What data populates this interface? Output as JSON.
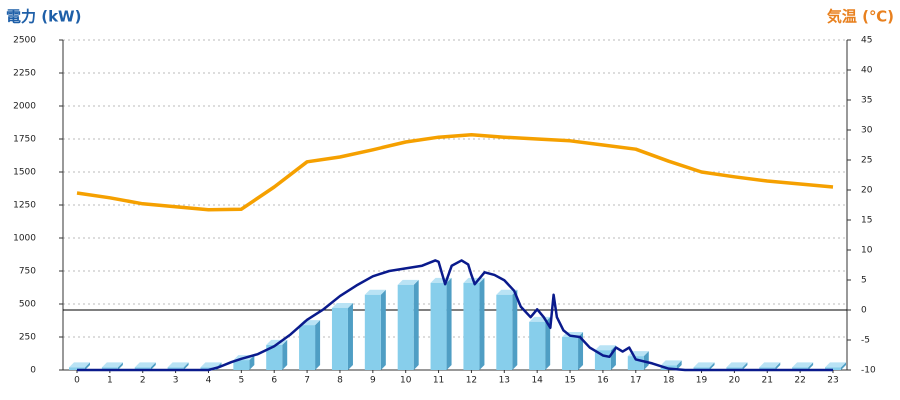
{
  "chart_data": {
    "type": "bar",
    "y_title": "電力 (kW)",
    "y2_title": "気温 (℃)",
    "categories": [
      "0",
      "1",
      "2",
      "3",
      "4",
      "5",
      "6",
      "7",
      "8",
      "9",
      "10",
      "11",
      "12",
      "13",
      "14",
      "15",
      "16",
      "17",
      "18",
      "19",
      "20",
      "21",
      "22",
      "23"
    ],
    "ylim": [
      0,
      2500
    ],
    "yticks": [
      0,
      250,
      500,
      750,
      1000,
      1250,
      1500,
      1750,
      2000,
      2250,
      2500
    ],
    "y2lim": [
      -10,
      45
    ],
    "y2ticks": [
      -10,
      -5,
      0,
      5,
      10,
      15,
      20,
      25,
      30,
      35,
      40,
      45
    ],
    "grid": true,
    "bars": {
      "color": "#87ceeb",
      "values": [
        20,
        20,
        20,
        20,
        20,
        75,
        190,
        340,
        470,
        570,
        645,
        660,
        660,
        570,
        365,
        250,
        150,
        105,
        35,
        20,
        20,
        20,
        20,
        20
      ]
    },
    "temperature": {
      "color": "#f5a000",
      "axis": "y2",
      "values": [
        19.5,
        18.7,
        17.7,
        17.2,
        16.7,
        16.8,
        20.5,
        24.7,
        25.5,
        26.7,
        28,
        28.8,
        29.2,
        28.8,
        28.5,
        28.2,
        27.5,
        26.8,
        24.8,
        23,
        22.2,
        21.5,
        21,
        20.5
      ]
    },
    "power": {
      "color": "#0a1a8c",
      "x": [
        0,
        1,
        2,
        3,
        4,
        4.3,
        4.7,
        5,
        5.5,
        6,
        6.5,
        7,
        7.5,
        8,
        8.5,
        9,
        9.5,
        10,
        10.5,
        10.9,
        11,
        11.2,
        11.4,
        11.7,
        11.9,
        12,
        12.1,
        12.4,
        12.7,
        13,
        13.3,
        13.5,
        13.8,
        14,
        14.2,
        14.4,
        14.5,
        14.6,
        14.8,
        15,
        15.3,
        15.6,
        16,
        16.2,
        16.4,
        16.6,
        16.8,
        17,
        17.5,
        18,
        18.5,
        19,
        20,
        21,
        22,
        23
      ],
      "values": [
        0,
        0,
        0,
        0,
        0,
        20,
        60,
        85,
        120,
        180,
        270,
        380,
        460,
        560,
        640,
        710,
        750,
        770,
        790,
        830,
        820,
        650,
        790,
        830,
        800,
        720,
        650,
        740,
        720,
        680,
        600,
        480,
        400,
        460,
        400,
        320,
        570,
        400,
        300,
        260,
        250,
        170,
        110,
        100,
        170,
        140,
        170,
        80,
        50,
        10,
        0,
        0,
        0,
        0,
        0,
        0
      ]
    }
  }
}
